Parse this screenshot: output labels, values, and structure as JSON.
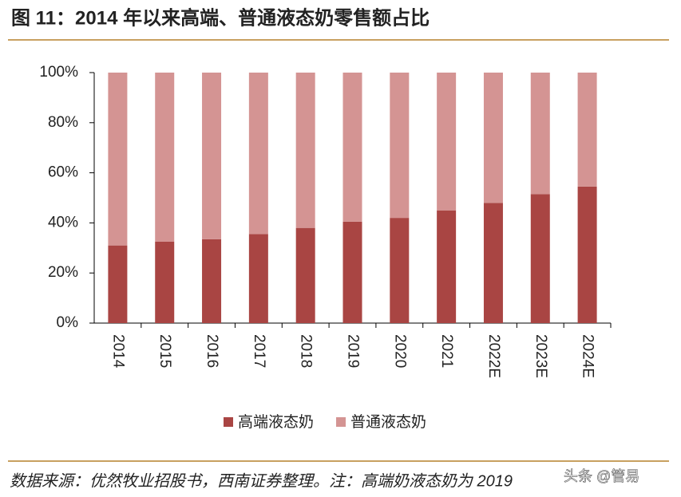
{
  "chart_data": {
    "type": "stacked_bar",
    "title": "图 11：2014 年以来高端、普通液态奶零售额占比",
    "categories": [
      "2014",
      "2015",
      "2016",
      "2017",
      "2018",
      "2019",
      "2020",
      "2021",
      "2022E",
      "2023E",
      "2024E"
    ],
    "series": [
      {
        "name": "高端液态奶",
        "color": "#a94543",
        "values": [
          31,
          32.5,
          33.5,
          35.5,
          38,
          40.5,
          42,
          45,
          48,
          51.5,
          54.5
        ]
      },
      {
        "name": "普通液态奶",
        "color": "#d49493",
        "values": [
          69,
          67.5,
          66.5,
          64.5,
          62,
          59.5,
          58,
          55,
          52,
          48.5,
          45.5
        ]
      }
    ],
    "ylim": [
      0,
      100
    ],
    "yticks": [
      {
        "value": 0,
        "label": "0%"
      },
      {
        "value": 20,
        "label": "20%"
      },
      {
        "value": 40,
        "label": "40%"
      },
      {
        "value": 60,
        "label": "60%"
      },
      {
        "value": 80,
        "label": "80%"
      },
      {
        "value": 100,
        "label": "100%"
      }
    ],
    "legend": "bottom",
    "source": "数据来源：优然牧业招股书，西南证券整理。注：高端奶液态奶为 2019",
    "watermark": "头条 @管易"
  }
}
